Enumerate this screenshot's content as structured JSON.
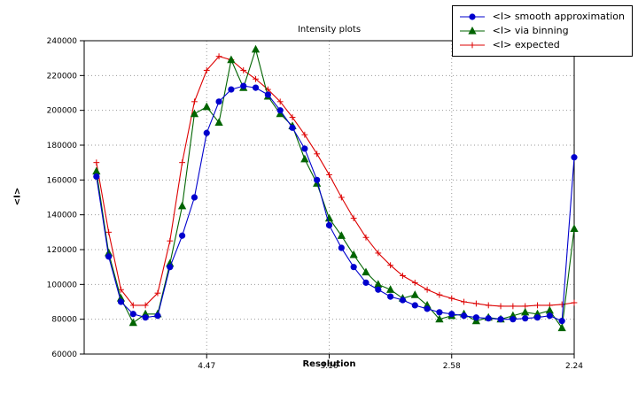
{
  "chart_data": {
    "type": "line",
    "title": "Intensity plots",
    "xlabel": "Resolution",
    "ylabel": "<I>",
    "xlim": [
      0,
      0.2
    ],
    "ylim": [
      60000,
      240000
    ],
    "grid": true,
    "legend_position": "top-right",
    "xticks": {
      "positions": [
        0.05,
        0.1,
        0.15,
        0.2
      ],
      "labels": [
        "4.47",
        "3.16",
        "2.58",
        "2.24"
      ]
    },
    "yticks": {
      "positions": [
        60000,
        80000,
        100000,
        120000,
        140000,
        160000,
        180000,
        200000,
        220000,
        240000
      ],
      "labels": [
        "60000",
        "80000",
        "100000",
        "120000",
        "140000",
        "160000",
        "180000",
        "200000",
        "220000",
        "240000"
      ]
    },
    "x": [
      0.005,
      0.01,
      0.015,
      0.02,
      0.025,
      0.03,
      0.035,
      0.04,
      0.045,
      0.05,
      0.055,
      0.06,
      0.065,
      0.07,
      0.075,
      0.08,
      0.085,
      0.09,
      0.095,
      0.1,
      0.105,
      0.11,
      0.115,
      0.12,
      0.125,
      0.13,
      0.135,
      0.14,
      0.145,
      0.15,
      0.155,
      0.16,
      0.165,
      0.17,
      0.175,
      0.18,
      0.185,
      0.19,
      0.195,
      0.2
    ],
    "series": [
      {
        "name": "<I> smooth approximation",
        "color": "#0000cd",
        "marker": "circle",
        "values": [
          162000,
          116000,
          90000,
          83000,
          81000,
          82000,
          110000,
          128000,
          150000,
          187000,
          205000,
          212000,
          214000,
          213000,
          209000,
          200000,
          190000,
          178000,
          160000,
          134000,
          121000,
          110000,
          101000,
          97000,
          93000,
          91000,
          88000,
          86000,
          84000,
          83000,
          82000,
          81000,
          80500,
          80000,
          80000,
          80500,
          81000,
          82000,
          79000,
          173000
        ]
      },
      {
        "name": "<I> via binning",
        "color": "#006400",
        "marker": "triangle",
        "values": [
          165000,
          118000,
          92000,
          78000,
          83000,
          83000,
          112000,
          145000,
          198000,
          202000,
          193000,
          229000,
          213000,
          235000,
          208000,
          198000,
          191000,
          172000,
          158000,
          138000,
          128000,
          117000,
          107000,
          100000,
          97000,
          92000,
          94000,
          88000,
          80000,
          82000,
          83000,
          79000,
          81000,
          80000,
          82000,
          84000,
          83000,
          85000,
          75000,
          132000
        ]
      },
      {
        "name": "<I> expected",
        "color": "#dd0000",
        "marker": "plus",
        "values": [
          170000,
          130000,
          97000,
          88000,
          88000,
          95000,
          125000,
          170000,
          205000,
          223000,
          231000,
          229000,
          223000,
          218000,
          212000,
          205000,
          196000,
          186000,
          175000,
          163000,
          150000,
          138000,
          127000,
          118000,
          111000,
          105000,
          101000,
          97000,
          94000,
          92000,
          90000,
          89000,
          88000,
          87500,
          87500,
          87500,
          88000,
          88000,
          88500,
          89500
        ]
      }
    ]
  }
}
